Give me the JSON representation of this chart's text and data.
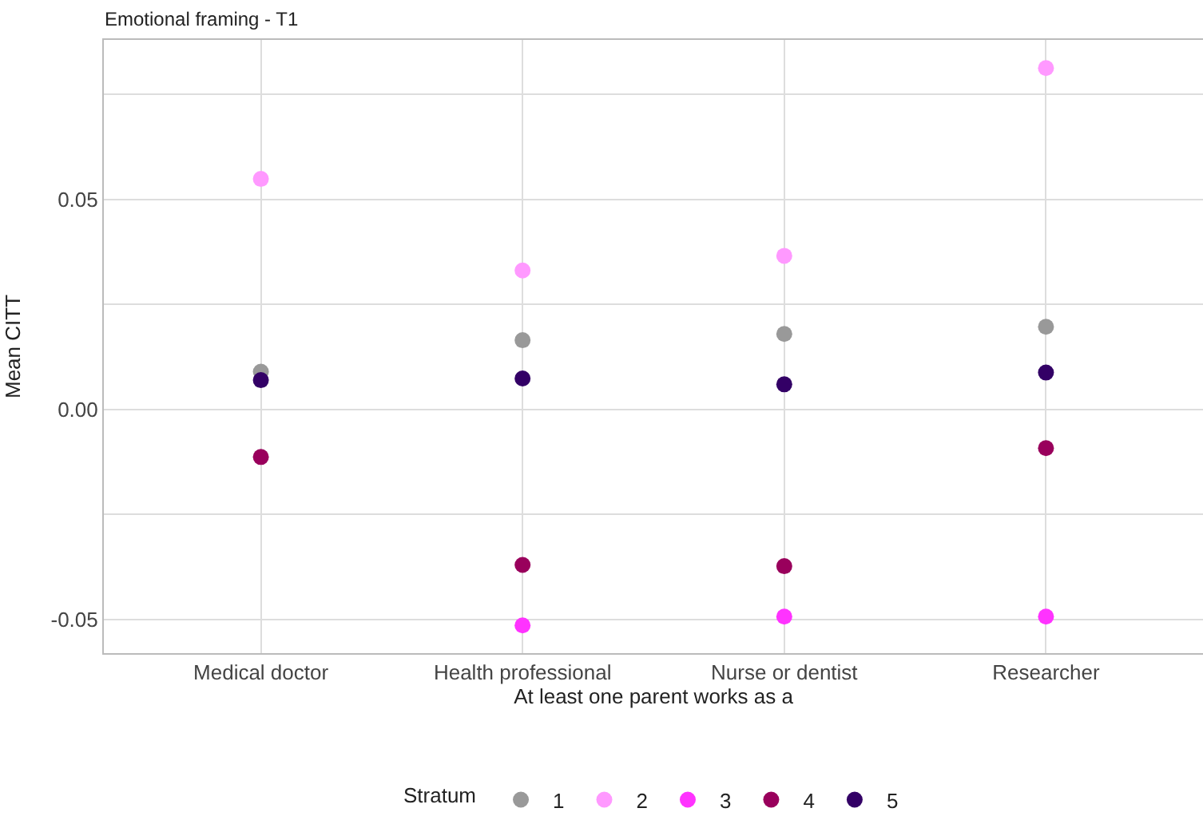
{
  "chart_data": {
    "type": "scatter",
    "title": "Emotional framing - T1",
    "xlabel": "At least one parent works as a",
    "ylabel": "Mean CITT",
    "legend_title": "Stratum",
    "categories": [
      "Medical doctor",
      "Health professional",
      "Nurse or dentist",
      "Researcher"
    ],
    "series": [
      {
        "name": "1",
        "color": "#999999",
        "values": [
          0.009,
          0.0165,
          0.018,
          0.0197
        ]
      },
      {
        "name": "2",
        "color": "#ff99ff",
        "values": [
          0.0549,
          0.0331,
          0.0366,
          0.0813
        ]
      },
      {
        "name": "3",
        "color": "#ff33ff",
        "values": [
          null,
          -0.0514,
          -0.0493,
          -0.0493
        ]
      },
      {
        "name": "4",
        "color": "#99005c",
        "values": [
          -0.0113,
          -0.037,
          -0.0373,
          -0.0092
        ]
      },
      {
        "name": "5",
        "color": "#330066",
        "values": [
          0.007,
          0.0074,
          0.006,
          0.0088
        ]
      }
    ],
    "ylim": [
      -0.058,
      0.088
    ],
    "yticks": [
      {
        "value": -0.05,
        "label": "-0.05"
      },
      {
        "value": -0.025,
        "label": null
      },
      {
        "value": 0,
        "label": "0.00"
      },
      {
        "value": 0.025,
        "label": null
      },
      {
        "value": 0.05,
        "label": "0.05"
      },
      {
        "value": 0.075,
        "label": null
      }
    ],
    "grid": true,
    "legend": "bottom",
    "marker": "circle"
  }
}
